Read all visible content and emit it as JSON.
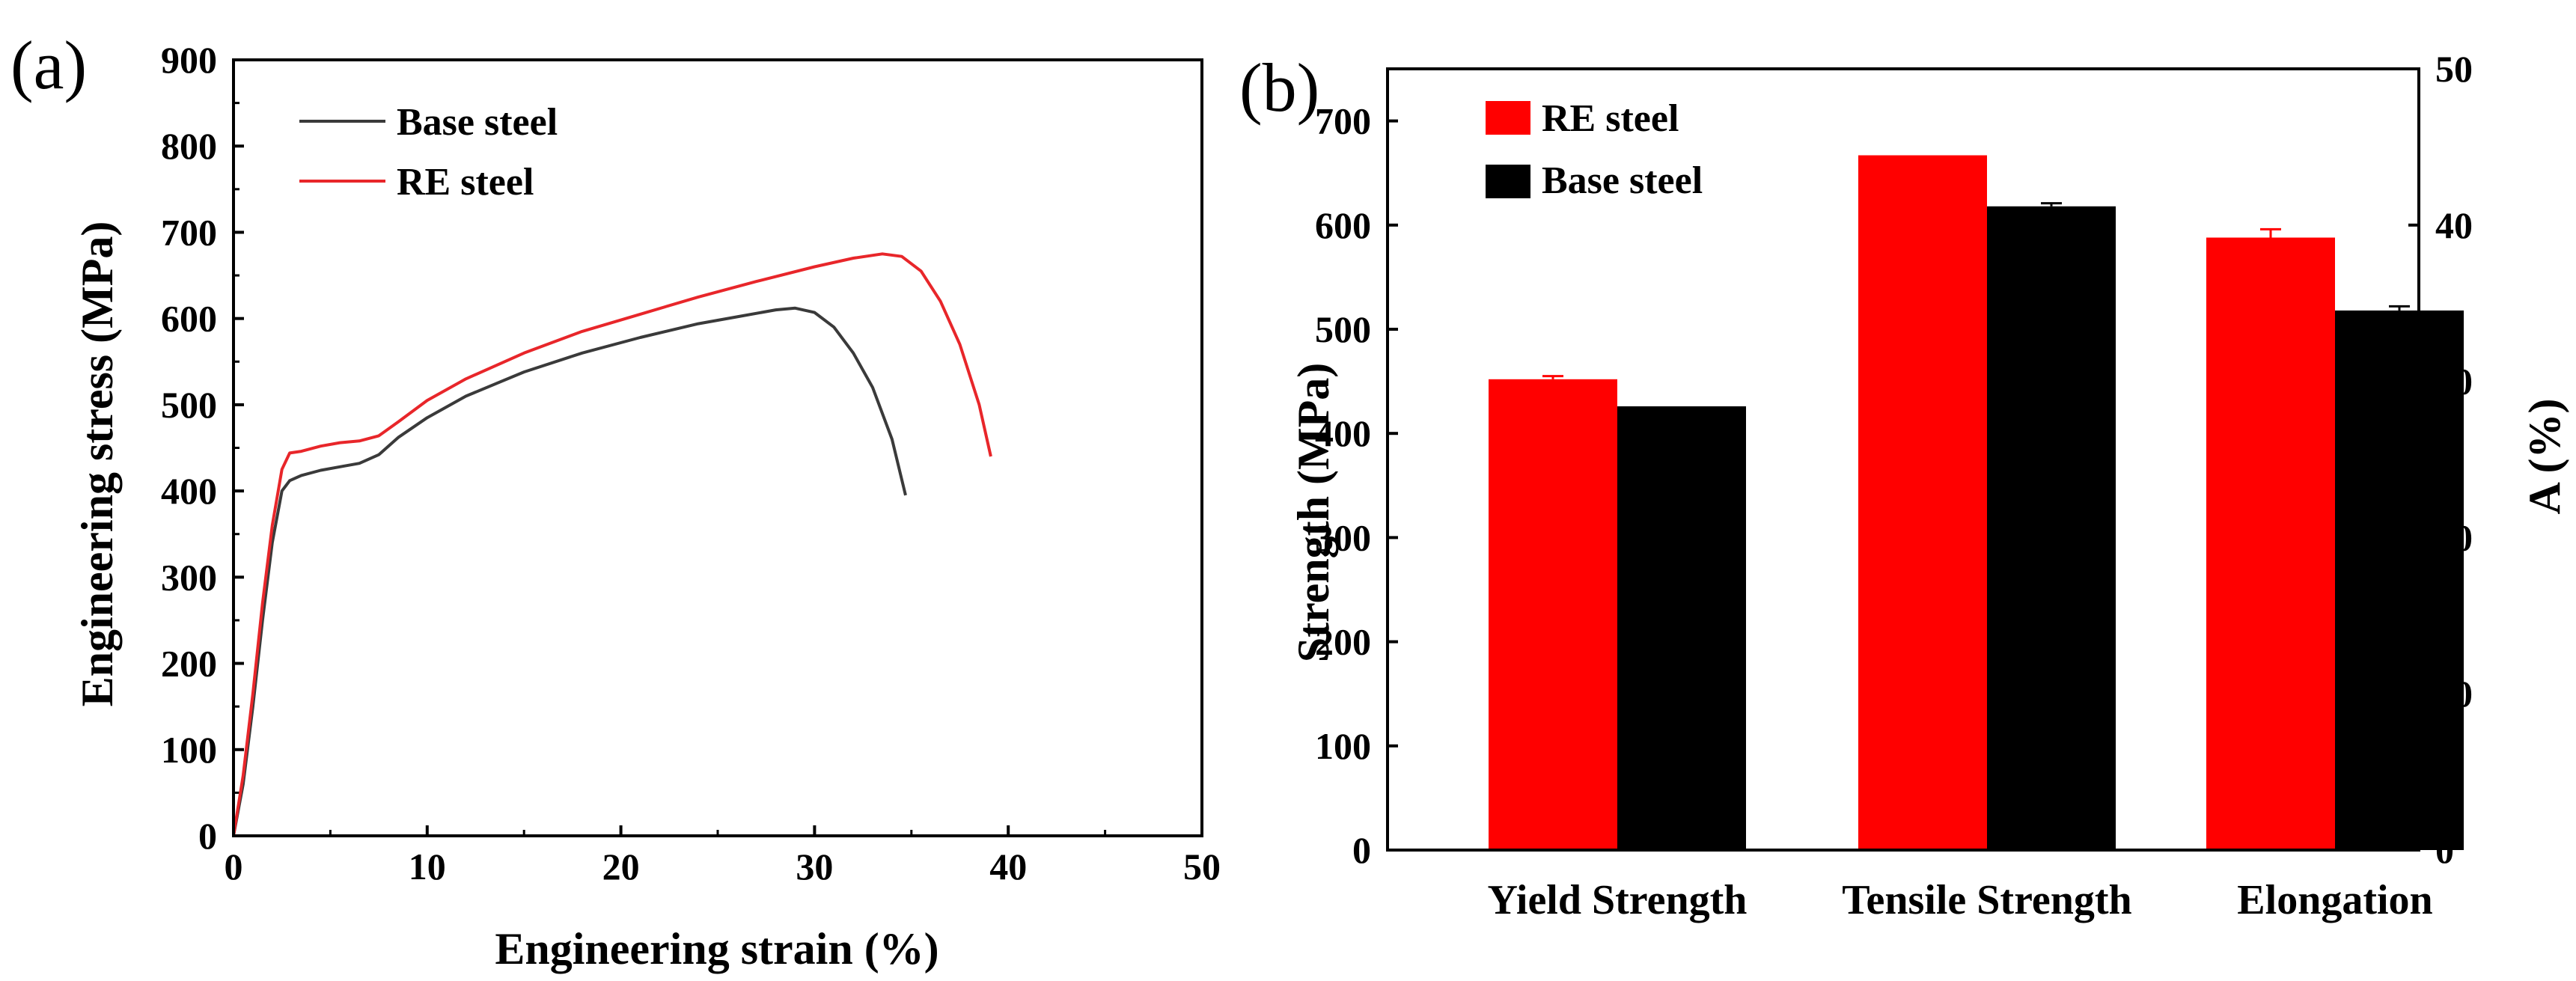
{
  "chart_data": [
    {
      "panel": "(a)",
      "type": "line",
      "xlabel": "Engineering strain (%)",
      "ylabel": "Engineering stress (MPa)",
      "xlim": [
        0,
        50
      ],
      "ylim": [
        0,
        900
      ],
      "xticks": [
        "0",
        "10",
        "20",
        "30",
        "40",
        "50"
      ],
      "yticks": [
        "0",
        "100",
        "200",
        "300",
        "400",
        "500",
        "600",
        "700",
        "800",
        "900"
      ],
      "legend_position": "top-left",
      "series": [
        {
          "name": "Base steel",
          "color": "#3a3a3a",
          "points": [
            [
              0,
              0
            ],
            [
              0.5,
              60
            ],
            [
              1,
              150
            ],
            [
              1.5,
              250
            ],
            [
              2,
              340
            ],
            [
              2.5,
              400
            ],
            [
              2.9,
              412
            ],
            [
              3.5,
              418
            ],
            [
              4.5,
              424
            ],
            [
              5.5,
              428
            ],
            [
              6.5,
              432
            ],
            [
              7.5,
              442
            ],
            [
              8.5,
              462
            ],
            [
              10,
              485
            ],
            [
              12,
              510
            ],
            [
              15,
              538
            ],
            [
              18,
              560
            ],
            [
              21,
              578
            ],
            [
              24,
              594
            ],
            [
              26,
              602
            ],
            [
              28,
              610
            ],
            [
              29,
              612
            ],
            [
              30,
              607
            ],
            [
              31,
              590
            ],
            [
              32,
              560
            ],
            [
              33,
              520
            ],
            [
              34,
              460
            ],
            [
              34.7,
              395
            ]
          ]
        },
        {
          "name": "RE steel",
          "color": "#e8262a",
          "points": [
            [
              0,
              0
            ],
            [
              0.5,
              70
            ],
            [
              1,
              165
            ],
            [
              1.5,
              270
            ],
            [
              2,
              360
            ],
            [
              2.5,
              425
            ],
            [
              2.9,
              444
            ],
            [
              3.5,
              446
            ],
            [
              4.5,
              452
            ],
            [
              5.5,
              456
            ],
            [
              6.5,
              458
            ],
            [
              7.5,
              464
            ],
            [
              8.5,
              480
            ],
            [
              10,
              505
            ],
            [
              12,
              530
            ],
            [
              15,
              560
            ],
            [
              18,
              585
            ],
            [
              21,
              605
            ],
            [
              24,
              625
            ],
            [
              27,
              643
            ],
            [
              30,
              660
            ],
            [
              32,
              670
            ],
            [
              33.5,
              675
            ],
            [
              34.5,
              672
            ],
            [
              35.5,
              655
            ],
            [
              36.5,
              620
            ],
            [
              37.5,
              570
            ],
            [
              38.5,
              500
            ],
            [
              39.1,
              440
            ]
          ]
        }
      ]
    },
    {
      "panel": "(b)",
      "type": "bar",
      "ylabel": "Strength (MPa)",
      "ylabel_right": "A (%)",
      "ylim": [
        0,
        750
      ],
      "ylim_right": [
        0,
        50
      ],
      "yticks": [
        "0",
        "100",
        "200",
        "300",
        "400",
        "500",
        "600",
        "700"
      ],
      "yticks_right": [
        "0",
        "10",
        "20",
        "30",
        "40",
        "50"
      ],
      "categories": [
        "Yield Strength",
        "Tensile Strength",
        "Elongation"
      ],
      "legend_position": "top-left",
      "series": [
        {
          "name": "RE steel",
          "color": "#ff0000",
          "values": [
            452,
            667,
            588
          ],
          "errors": [
            3,
            0,
            8
          ]
        },
        {
          "name": "Base steel",
          "color": "#000000",
          "values": [
            426,
            618,
            518
          ],
          "errors": [
            0,
            3,
            4
          ]
        }
      ],
      "note": "Elongation values plotted against right axis: RE 39.2%, Base 34.5%"
    }
  ]
}
